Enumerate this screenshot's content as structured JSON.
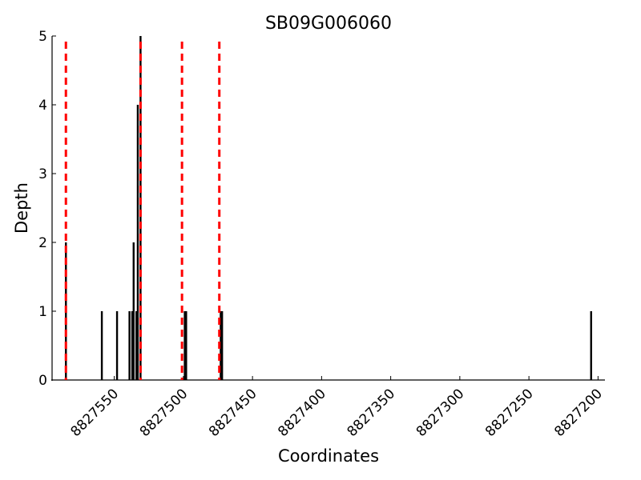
{
  "chart_data": {
    "type": "bar",
    "title": "SB09G006060",
    "x_label": "Coordinates",
    "y_label": "Depth",
    "x": [
      8827585,
      8827559,
      8827548,
      8827539,
      8827537,
      8827536,
      8827534,
      8827533,
      8827531,
      8827499,
      8827498,
      8827473,
      8827472,
      8827205
    ],
    "values": [
      2,
      1,
      1,
      1,
      1,
      2,
      1,
      4,
      5,
      1,
      1,
      1,
      1,
      1
    ],
    "color": "#000000",
    "vlines": [
      8827585,
      8827531,
      8827501,
      8827474
    ],
    "vline_color": "#ff0000",
    "xlim": [
      8827595,
      8827195
    ],
    "xticks": [
      8827550,
      8827500,
      8827450,
      8827400,
      8827350,
      8827300,
      8827250,
      8827200
    ],
    "ylim": [
      0,
      5
    ],
    "yticks": [
      0,
      1,
      2,
      3,
      4,
      5
    ]
  }
}
